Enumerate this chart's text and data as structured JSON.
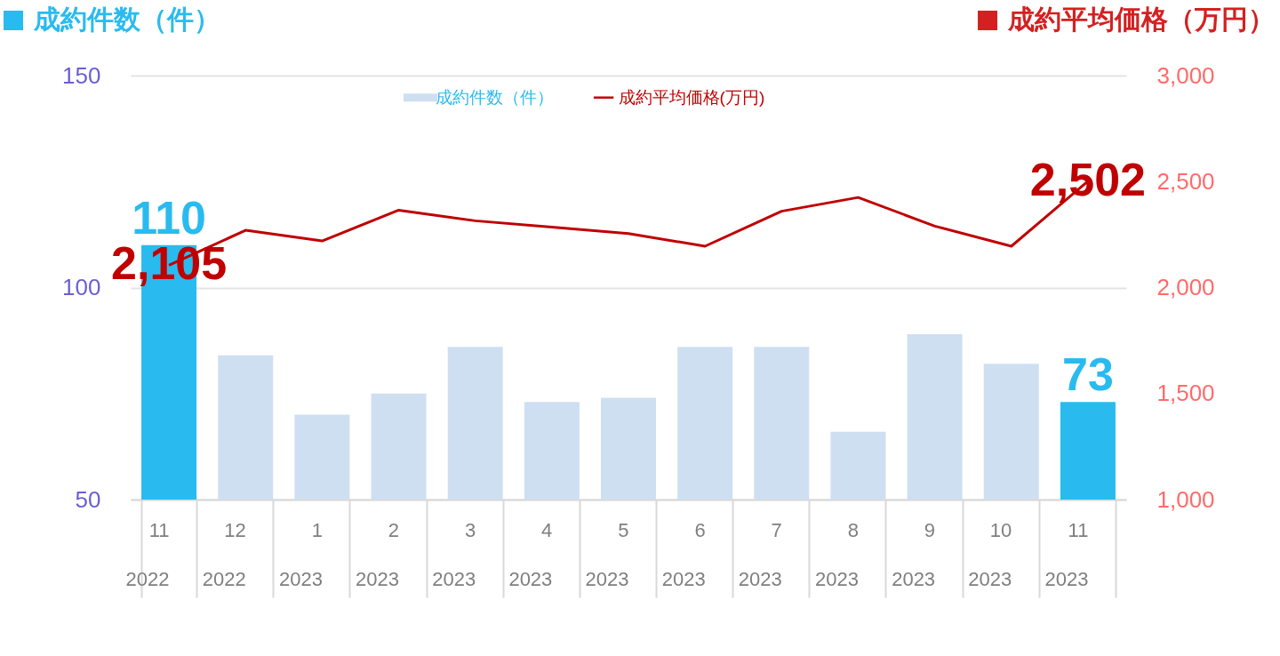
{
  "chart_data": {
    "type": "bar",
    "ylabel": "成約件数（件）",
    "y2label": "成約平均価格（万円）",
    "categories": [
      "11\n2022",
      "12\n2022",
      "1\n2023",
      "2\n2023",
      "3\n2023",
      "4\n2023",
      "5\n2023",
      "6\n2023",
      "7\n2023",
      "8\n2023",
      "9\n2023",
      "10\n2023",
      "11\n2023"
    ],
    "series": [
      {
        "name": "成約件数（件）",
        "color": "#cfdff2",
        "colors": [
          "#29bbef",
          "#cfdff2",
          "#cfdff2",
          "#cfdff2",
          "#cfdff2",
          "#cfdff2",
          "#cfdff2",
          "#cfdff2",
          "#cfdff2",
          "#cfdff2",
          "#cfdff2",
          "#cfdff2",
          "#29bbef"
        ],
        "values": [
          110,
          84,
          70,
          75,
          86,
          73,
          74,
          86,
          86,
          66,
          89,
          82,
          73
        ],
        "value_labels": [
          "110",
          null,
          null,
          null,
          null,
          null,
          null,
          null,
          null,
          null,
          null,
          null,
          "73"
        ]
      },
      {
        "name": "成約平均価格(万円)",
        "type": "line",
        "axis": "y2",
        "color": "#c00000",
        "values": [
          2105,
          2270,
          2220,
          2365,
          2315,
          2285,
          2255,
          2195,
          2360,
          2425,
          2290,
          2195,
          2502
        ],
        "value_labels": [
          "2,105",
          null,
          null,
          null,
          null,
          null,
          null,
          null,
          null,
          null,
          null,
          null,
          "2,502"
        ]
      }
    ],
    "ylim": [
      50,
      150
    ],
    "yticks": [
      50,
      100,
      150
    ],
    "y2lim": [
      1000,
      3000
    ],
    "y2ticks": [
      {
        "value": 1000,
        "label": "1,000"
      },
      {
        "value": 1500,
        "label": "1,500"
      },
      {
        "value": 2000,
        "label": "2,000"
      },
      {
        "value": 2500,
        "label": "2,500"
      },
      {
        "value": 3000,
        "label": "3,000"
      }
    ],
    "grid": "y",
    "legend": "top"
  }
}
